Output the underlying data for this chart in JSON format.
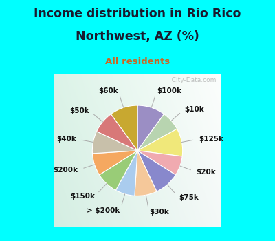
{
  "title_line1": "Income distribution in Rio Rico",
  "title_line2": "Northwest, AZ (%)",
  "subtitle": "All residents",
  "labels": [
    "$100k",
    "$10k",
    "$125k",
    "$20k",
    "$75k",
    "$30k",
    "> $200k",
    "$150k",
    "$200k",
    "$40k",
    "$50k",
    "$60k"
  ],
  "values": [
    10,
    7,
    10,
    7,
    9,
    8,
    7,
    8,
    8,
    8,
    8,
    10
  ],
  "colors": [
    "#9b8ec4",
    "#b8d4b0",
    "#f0e87a",
    "#f0aab0",
    "#8888cc",
    "#f5c89a",
    "#aaccee",
    "#99cc77",
    "#f5a860",
    "#c8c0aa",
    "#d87878",
    "#c8a830"
  ],
  "bg_top": "#00ffff",
  "title_color": "#1a1a2e",
  "subtitle_color": "#cc6622",
  "watermark": "  City-Data.com",
  "label_fontsize": 7.5,
  "title_fontsize": 12.5
}
